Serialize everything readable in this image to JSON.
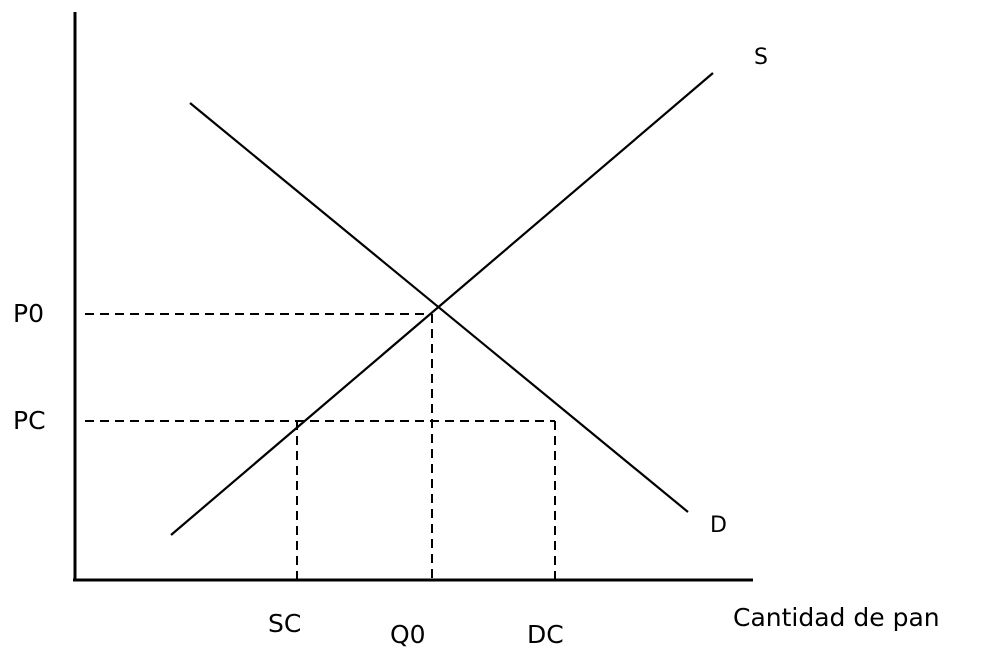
{
  "labels": {
    "supply": "S",
    "demand": "D",
    "p0": "P0",
    "pc": "PC",
    "sc": "SC",
    "q0": "Q0",
    "dc": "DC",
    "x_axis": "Cantidad de pan"
  }
}
